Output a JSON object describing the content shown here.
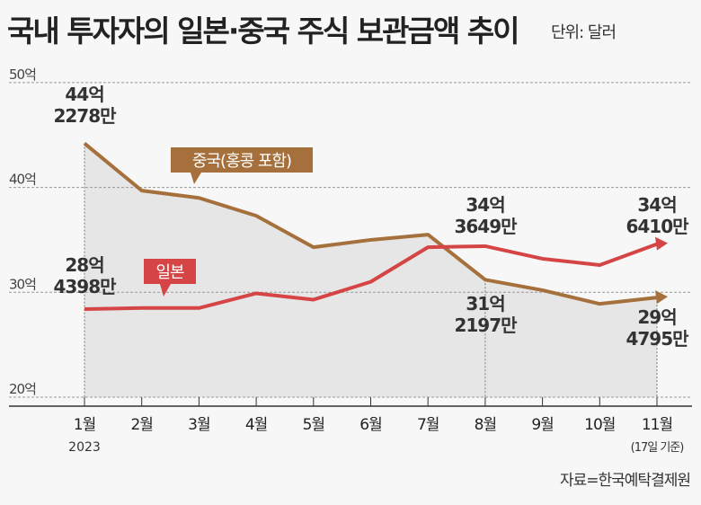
{
  "title": "국내 투자자의 일본·중국 주식 보관금액 추이",
  "unit": "단위: 달러",
  "source": "자료=한국예탁결제원",
  "chart_data": {
    "type": "line",
    "categories": [
      "1월",
      "2월",
      "3월",
      "4월",
      "5월",
      "6월",
      "7월",
      "8월",
      "9월",
      "10월",
      "11월"
    ],
    "x_sublabels": {
      "first": "2023",
      "last": "(17일 기준)"
    },
    "ylim": [
      20,
      50
    ],
    "yticks": [
      {
        "v": 50,
        "label": "50억"
      },
      {
        "v": 40,
        "label": "40억"
      },
      {
        "v": 30,
        "label": "30억"
      },
      {
        "v": 20,
        "label": "20억"
      }
    ],
    "grid": true,
    "series": [
      {
        "name": "중국(홍콩 포함)",
        "color": "#a5703c",
        "values": [
          44.2,
          39.7,
          39.0,
          37.3,
          34.3,
          35.0,
          35.5,
          31.2,
          30.2,
          28.9,
          29.5
        ]
      },
      {
        "name": "일본",
        "color": "#d64545",
        "values": [
          28.4,
          28.5,
          28.5,
          29.9,
          29.3,
          31.0,
          34.3,
          34.4,
          33.2,
          32.6,
          34.6
        ]
      }
    ],
    "annotations": [
      {
        "idx": 0,
        "series": 0,
        "line1": "44억",
        "line2": "2278만"
      },
      {
        "idx": 0,
        "series": 1,
        "line1": "28억",
        "line2": "4398만"
      },
      {
        "idx": 7,
        "series": 1,
        "line1": "34억",
        "line2": "3649만"
      },
      {
        "idx": 7,
        "series": 0,
        "line1": "31억",
        "line2": "2197만"
      },
      {
        "idx": 10,
        "series": 1,
        "line1": "34억",
        "line2": "6410만"
      },
      {
        "idx": 10,
        "series": 0,
        "line1": "29억",
        "line2": "4795만"
      }
    ]
  }
}
